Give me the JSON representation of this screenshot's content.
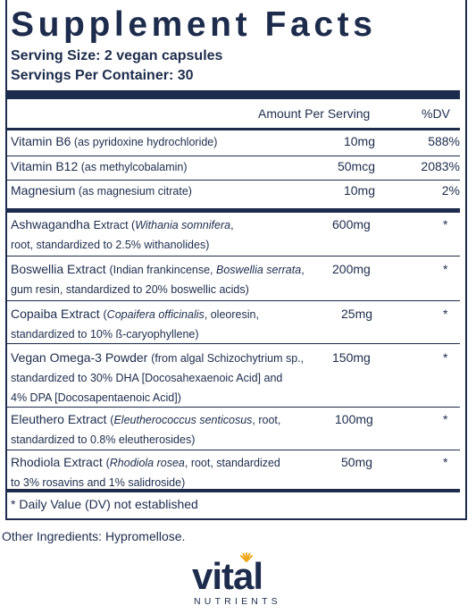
{
  "panel": {
    "title": "Supplement Facts",
    "serving_size": "Serving Size: 2 vegan capsules",
    "servings_per_container": "Servings Per Container: 30",
    "col_amount": "Amount Per Serving",
    "col_dv": "%DV"
  },
  "vitamins": [
    {
      "name": "Vitamin B6",
      "source": "(as pyridoxine hydrochloride)",
      "amount": "10mg",
      "dv": "588%"
    },
    {
      "name": "Vitamin B12",
      "source": "(as methylcobalamin)",
      "amount": "50mcg",
      "dv": "2083%"
    },
    {
      "name": "Magnesium",
      "source": "(as magnesium citrate)",
      "amount": "10mg",
      "dv": "2%"
    }
  ],
  "ingredients": [
    {
      "lines": [
        [
          {
            "t": "Ashwagandha "
          },
          {
            "t": "Extract (",
            "sm": true
          },
          {
            "t": "Withania somnifera",
            "sm": true,
            "i": true
          },
          {
            "t": ",",
            "sm": true
          }
        ],
        [
          {
            "t": "root, standardized to 2.5% withanolides)",
            "sm": true
          }
        ]
      ],
      "amount": "600mg",
      "dv": "*"
    },
    {
      "lines": [
        [
          {
            "t": "Boswellia Extract "
          },
          {
            "t": "(Indian frankincense, ",
            "sm": true
          },
          {
            "t": "Boswellia serrata",
            "sm": true,
            "i": true
          },
          {
            "t": ",",
            "sm": true
          }
        ],
        [
          {
            "t": "gum resin, standardized to 20% boswellic acids)",
            "sm": true
          }
        ]
      ],
      "amount": "200mg",
      "dv": "*"
    },
    {
      "lines": [
        [
          {
            "t": "Copaiba Extract "
          },
          {
            "t": "(",
            "sm": true
          },
          {
            "t": "Copaifera officinalis",
            "sm": true,
            "i": true
          },
          {
            "t": ", oleoresin,",
            "sm": true
          }
        ],
        [
          {
            "t": "standardized to 10% ß-caryophyllene)",
            "sm": true
          }
        ]
      ],
      "amount": "25mg",
      "dv": "*"
    },
    {
      "lines": [
        [
          {
            "t": "Vegan Omega-3 Powder "
          },
          {
            "t": "(from algal Schizochytrium sp.,",
            "sm": true
          }
        ],
        [
          {
            "t": "standardized to 30% DHA [Docosahexaenoic Acid] and",
            "sm": true
          }
        ],
        [
          {
            "t": "4% DPA [Docosapentaenoic Acid])",
            "sm": true
          }
        ]
      ],
      "amount": "150mg",
      "dv": "*"
    },
    {
      "lines": [
        [
          {
            "t": "Eleuthero Extract "
          },
          {
            "t": "(",
            "sm": true
          },
          {
            "t": "Eleutherococcus senticosus",
            "sm": true,
            "i": true
          },
          {
            "t": ", root,",
            "sm": true
          }
        ],
        [
          {
            "t": "standardized to 0.8% eleutherosides)",
            "sm": true
          }
        ]
      ],
      "amount": "100mg",
      "dv": "*"
    },
    {
      "lines": [
        [
          {
            "t": "Rhodiola Extract "
          },
          {
            "t": "(",
            "sm": true
          },
          {
            "t": "Rhodiola rosea",
            "sm": true,
            "i": true
          },
          {
            "t": ", root, standardized",
            "sm": true
          }
        ],
        [
          {
            "t": "to 3% rosavins and 1% salidroside)",
            "sm": true
          }
        ]
      ],
      "amount": "50mg",
      "dv": "*"
    }
  ],
  "footnote": "* Daily Value (DV) not established",
  "other_ingredients": "Other Ingredients:  Hypromellose.",
  "logo": {
    "wordmark": "vital",
    "subtitle": "NUTRIENTS",
    "spark_color": "#f0a81e"
  },
  "colors": {
    "ink": "#1d2c4c",
    "accent": "#f0a81e"
  }
}
